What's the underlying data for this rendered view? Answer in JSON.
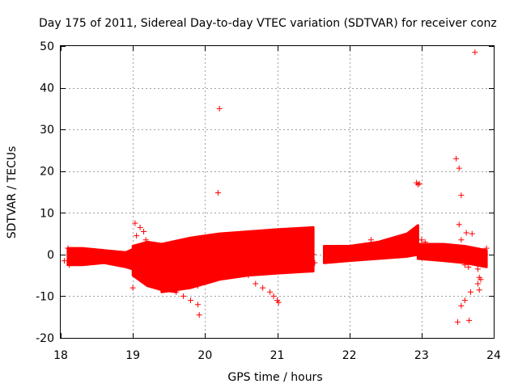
{
  "chart_data": {
    "type": "scatter",
    "title": "Day 175 of 2011, Sidereal Day-to-day VTEC variation (SDTVAR) for receiver conz",
    "xlabel": "GPS time / hours",
    "ylabel": "SDTVAR / TECUs",
    "xlim": [
      18,
      24
    ],
    "ylim": [
      -20,
      50
    ],
    "xticks": [
      18,
      19,
      20,
      21,
      22,
      23,
      24
    ],
    "yticks": [
      -20,
      -10,
      0,
      10,
      20,
      30,
      40,
      50
    ],
    "grid": true,
    "marker": "+",
    "color": "#ff0000",
    "dense_bands": [
      {
        "name": "band-18-19",
        "x": [
          18.1,
          18.3,
          18.6,
          18.9,
          19.1
        ],
        "ymin": [
          -2.5,
          -2.5,
          -2,
          -3,
          -4
        ],
        "ymax": [
          1.5,
          1.5,
          1,
          0.5,
          2
        ]
      },
      {
        "name": "band-19-19.6",
        "x": [
          19.0,
          19.2,
          19.4,
          19.6
        ],
        "ymin": [
          -5,
          -7.5,
          -8.5,
          -9
        ],
        "ymax": [
          2,
          3,
          2.5,
          3
        ]
      },
      {
        "name": "band-19.4-21.5",
        "x": [
          19.4,
          19.8,
          20.2,
          20.6,
          21.0,
          21.5
        ],
        "ymin": [
          -9,
          -8,
          -6,
          -5,
          -4.5,
          -4
        ],
        "ymax": [
          2.5,
          4,
          5,
          5.5,
          6,
          6.5
        ]
      },
      {
        "name": "band-21.7-23",
        "x": [
          21.65,
          22.0,
          22.4,
          22.8,
          22.95
        ],
        "ymin": [
          -2,
          -1.5,
          -1,
          -0.5,
          0
        ],
        "ymax": [
          2,
          2,
          3,
          5,
          7
        ]
      },
      {
        "name": "band-23-23.9",
        "x": [
          22.95,
          23.3,
          23.6,
          23.9
        ],
        "ymin": [
          -1,
          -1.5,
          -2,
          -3
        ],
        "ymax": [
          2.5,
          2.5,
          2,
          1
        ]
      }
    ],
    "points": [
      {
        "x": 18.05,
        "y": -1.5
      },
      {
        "x": 18.1,
        "y": 1.5
      },
      {
        "x": 18.12,
        "y": -2.5
      },
      {
        "x": 19.03,
        "y": 7.5
      },
      {
        "x": 19.05,
        "y": 4.5
      },
      {
        "x": 19.1,
        "y": 6.5
      },
      {
        "x": 19.15,
        "y": 5.5
      },
      {
        "x": 19.18,
        "y": 3.5
      },
      {
        "x": 19.0,
        "y": -8
      },
      {
        "x": 19.1,
        "y": -3
      },
      {
        "x": 19.25,
        "y": -7
      },
      {
        "x": 19.3,
        "y": -6
      },
      {
        "x": 19.45,
        "y": -8
      },
      {
        "x": 19.6,
        "y": -9
      },
      {
        "x": 19.7,
        "y": -10
      },
      {
        "x": 19.8,
        "y": -11
      },
      {
        "x": 19.9,
        "y": -12
      },
      {
        "x": 19.9,
        "y": -7.5
      },
      {
        "x": 19.92,
        "y": -14.5
      },
      {
        "x": 20.2,
        "y": 35
      },
      {
        "x": 20.18,
        "y": 14.8
      },
      {
        "x": 20.6,
        "y": -5
      },
      {
        "x": 20.7,
        "y": -7
      },
      {
        "x": 20.8,
        "y": -8
      },
      {
        "x": 20.9,
        "y": -9
      },
      {
        "x": 20.95,
        "y": -10
      },
      {
        "x": 21.0,
        "y": -11
      },
      {
        "x": 21.02,
        "y": -11.5
      },
      {
        "x": 20.5,
        "y": -4
      },
      {
        "x": 20.4,
        "y": -3.5
      },
      {
        "x": 21.5,
        "y": 0
      },
      {
        "x": 21.52,
        "y": -2
      },
      {
        "x": 22.3,
        "y": 3.5
      },
      {
        "x": 22.93,
        "y": 17.2
      },
      {
        "x": 22.95,
        "y": 16.8
      },
      {
        "x": 22.97,
        "y": 17
      },
      {
        "x": 23.0,
        "y": 3.5
      },
      {
        "x": 23.05,
        "y": 3
      },
      {
        "x": 23.48,
        "y": 23
      },
      {
        "x": 23.52,
        "y": 20.7
      },
      {
        "x": 23.55,
        "y": 14.2
      },
      {
        "x": 23.52,
        "y": 7.2
      },
      {
        "x": 23.62,
        "y": 5.2
      },
      {
        "x": 23.7,
        "y": 5
      },
      {
        "x": 23.74,
        "y": 48.5
      },
      {
        "x": 23.55,
        "y": 3.5
      },
      {
        "x": 23.58,
        "y": -1
      },
      {
        "x": 23.6,
        "y": -2.5
      },
      {
        "x": 23.65,
        "y": -3
      },
      {
        "x": 23.78,
        "y": -3.5
      },
      {
        "x": 23.8,
        "y": -5.5
      },
      {
        "x": 23.82,
        "y": -6
      },
      {
        "x": 23.78,
        "y": -7
      },
      {
        "x": 23.8,
        "y": -8.5
      },
      {
        "x": 23.68,
        "y": -9
      },
      {
        "x": 23.6,
        "y": -11
      },
      {
        "x": 23.55,
        "y": -12.3
      },
      {
        "x": 23.5,
        "y": -16.2
      },
      {
        "x": 23.66,
        "y": -15.8
      },
      {
        "x": 23.85,
        "y": -2
      },
      {
        "x": 23.88,
        "y": 0
      },
      {
        "x": 23.9,
        "y": 1.5
      }
    ]
  }
}
